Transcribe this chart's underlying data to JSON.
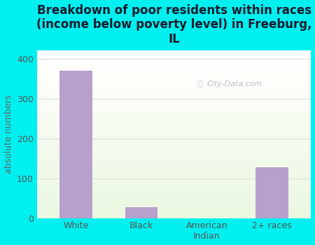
{
  "categories": [
    "White",
    "Black",
    "American\nIndian",
    "2+ races"
  ],
  "values": [
    370,
    28,
    0,
    128
  ],
  "bar_color": "#b8a0cc",
  "background_color": "#00f0f0",
  "title": "Breakdown of poor residents within races\n(income below poverty level) in Freeburg,\nIL",
  "title_color": "#1a1a2e",
  "title_fontsize": 12,
  "ylabel": "absolute numbers",
  "ylabel_color": "#666666",
  "ylabel_fontsize": 9,
  "ylim": [
    0,
    420
  ],
  "yticks": [
    0,
    100,
    200,
    300,
    400
  ],
  "grid_color": "#dddddd",
  "tick_color": "#555555",
  "xtick_fontsize": 9,
  "ytick_fontsize": 9,
  "watermark": "City-Data.com"
}
